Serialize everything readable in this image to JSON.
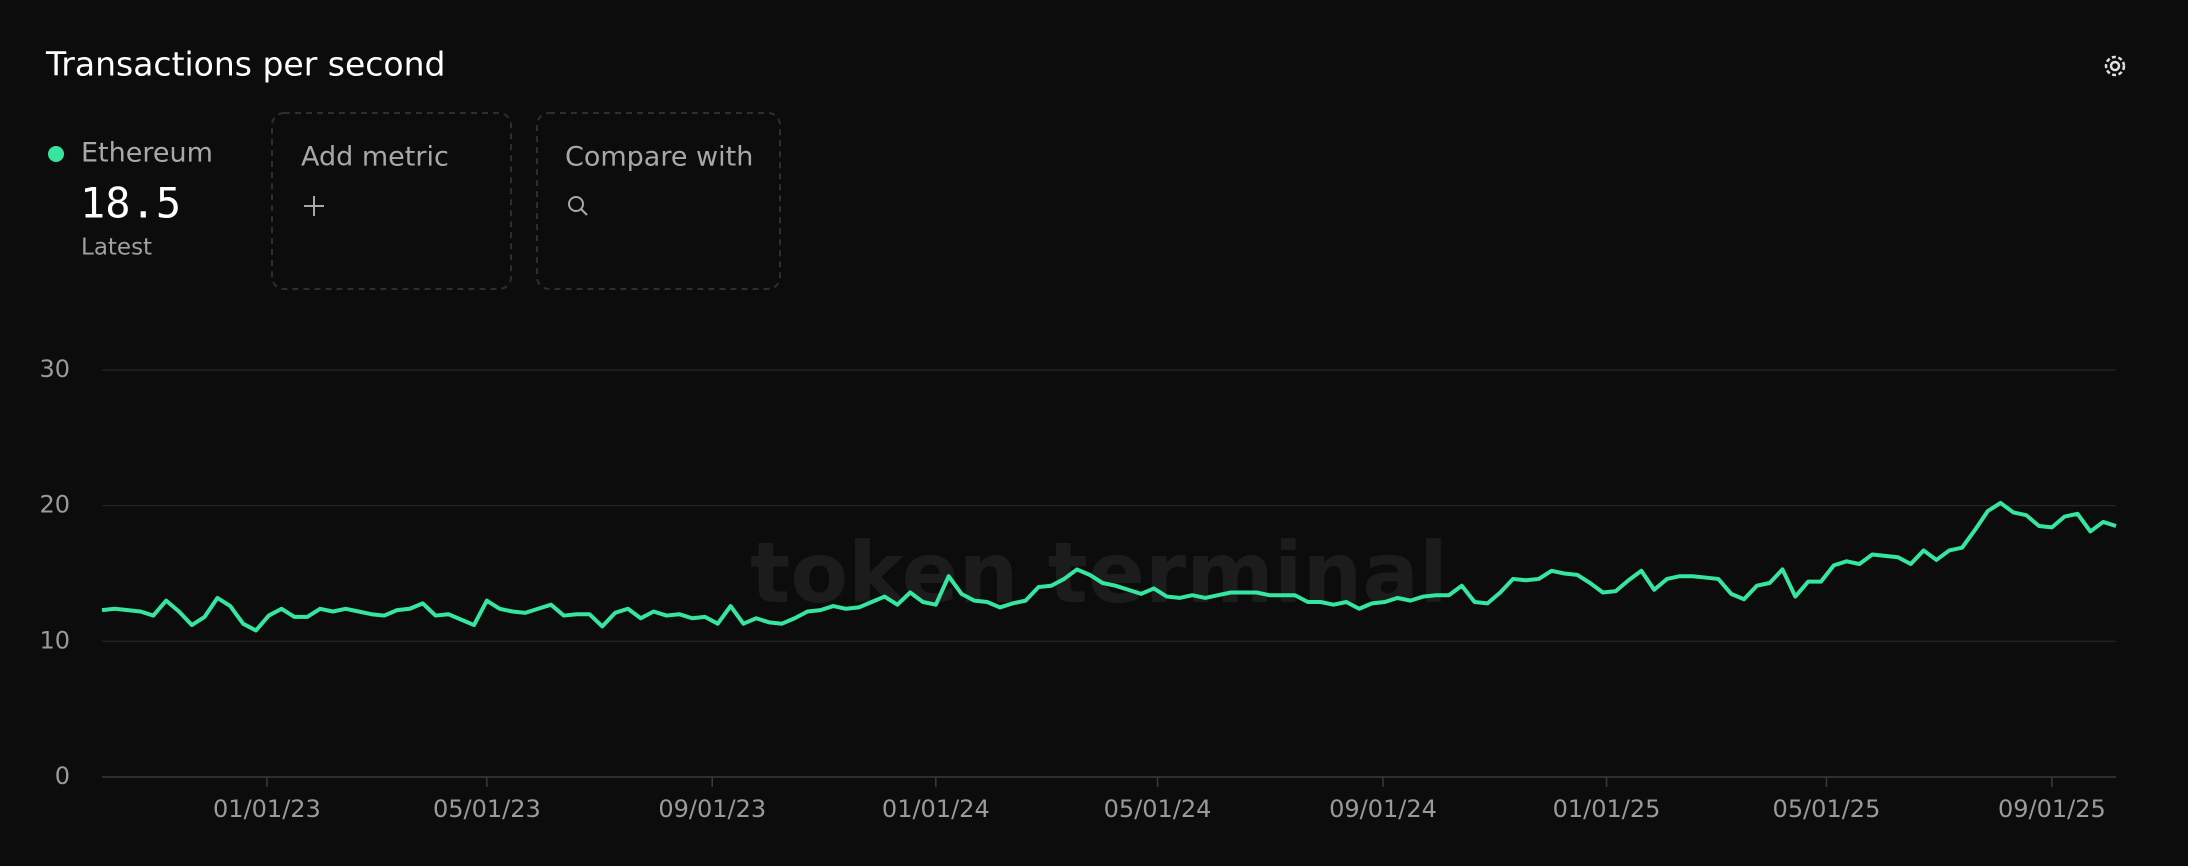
{
  "chart_data": {
    "type": "line",
    "title": "Transactions per second",
    "watermark": "token terminal",
    "latest_value": "18.5",
    "latest_label": "Latest",
    "add_metric": "Add metric",
    "compare_with": "Compare with",
    "x": [
      "2022-10-03",
      "2022-10-10",
      "2022-10-17",
      "2022-10-24",
      "2022-10-31",
      "2022-11-07",
      "2022-11-14",
      "2022-11-21",
      "2022-11-28",
      "2022-12-05",
      "2022-12-12",
      "2022-12-19",
      "2022-12-26",
      "2023-01-02",
      "2023-01-09",
      "2023-01-16",
      "2023-01-23",
      "2023-01-30",
      "2023-02-06",
      "2023-02-13",
      "2023-02-20",
      "2023-02-27",
      "2023-03-06",
      "2023-03-13",
      "2023-03-20",
      "2023-03-27",
      "2023-04-03",
      "2023-04-10",
      "2023-04-17",
      "2023-04-24",
      "2023-05-01",
      "2023-05-08",
      "2023-05-15",
      "2023-05-22",
      "2023-05-29",
      "2023-06-05",
      "2023-06-12",
      "2023-06-19",
      "2023-06-26",
      "2023-07-03",
      "2023-07-10",
      "2023-07-17",
      "2023-07-24",
      "2023-07-31",
      "2023-08-07",
      "2023-08-14",
      "2023-08-21",
      "2023-08-28",
      "2023-09-04",
      "2023-09-11",
      "2023-09-18",
      "2023-09-25",
      "2023-10-02",
      "2023-10-09",
      "2023-10-16",
      "2023-10-23",
      "2023-10-30",
      "2023-11-06",
      "2023-11-13",
      "2023-11-20",
      "2023-11-27",
      "2023-12-04",
      "2023-12-11",
      "2023-12-18",
      "2023-12-25",
      "2024-01-01",
      "2024-01-08",
      "2024-01-15",
      "2024-01-22",
      "2024-01-29",
      "2024-02-05",
      "2024-02-12",
      "2024-02-19",
      "2024-02-26",
      "2024-03-04",
      "2024-03-11",
      "2024-03-18",
      "2024-03-25",
      "2024-04-01",
      "2024-04-08",
      "2024-04-15",
      "2024-04-22",
      "2024-04-29",
      "2024-05-06",
      "2024-05-13",
      "2024-05-20",
      "2024-05-27",
      "2024-06-03",
      "2024-06-10",
      "2024-06-17",
      "2024-06-24",
      "2024-07-01",
      "2024-07-08",
      "2024-07-15",
      "2024-07-22",
      "2024-07-29",
      "2024-08-05",
      "2024-08-12",
      "2024-08-19",
      "2024-08-26",
      "2024-09-02",
      "2024-09-09",
      "2024-09-16",
      "2024-09-23",
      "2024-09-30",
      "2024-10-07",
      "2024-10-14",
      "2024-10-21",
      "2024-10-28",
      "2024-11-04",
      "2024-11-11",
      "2024-11-18",
      "2024-11-25",
      "2024-12-02",
      "2024-12-09",
      "2024-12-16",
      "2024-12-23",
      "2024-12-30",
      "2025-01-06",
      "2025-01-13",
      "2025-01-20",
      "2025-01-27",
      "2025-02-03",
      "2025-02-10",
      "2025-02-17",
      "2025-02-24",
      "2025-03-03",
      "2025-03-10",
      "2025-03-17",
      "2025-03-24",
      "2025-03-31",
      "2025-04-07",
      "2025-04-14",
      "2025-04-21",
      "2025-04-28",
      "2025-05-05",
      "2025-05-12",
      "2025-05-19",
      "2025-05-26",
      "2025-06-02",
      "2025-06-09",
      "2025-06-16",
      "2025-06-23",
      "2025-06-30",
      "2025-07-07",
      "2025-07-14",
      "2025-07-21",
      "2025-07-28",
      "2025-08-04",
      "2025-08-11",
      "2025-08-18",
      "2025-08-25",
      "2025-09-01",
      "2025-09-08",
      "2025-09-15",
      "2025-09-22",
      "2025-09-29",
      "2025-10-06"
    ],
    "series": [
      {
        "name": "Ethereum",
        "color": "#36e6a0",
        "values": [
          12.3,
          12.4,
          12.3,
          12.2,
          11.9,
          13.0,
          12.2,
          11.2,
          11.8,
          13.2,
          12.6,
          11.3,
          10.8,
          11.9,
          12.4,
          11.8,
          11.8,
          12.4,
          12.2,
          12.4,
          12.2,
          12.0,
          11.9,
          12.3,
          12.4,
          12.8,
          11.9,
          12.0,
          11.6,
          11.2,
          13.0,
          12.4,
          12.2,
          12.1,
          12.4,
          12.7,
          11.9,
          12.0,
          12.0,
          11.1,
          12.1,
          12.4,
          11.7,
          12.2,
          11.9,
          12.0,
          11.7,
          11.8,
          11.3,
          12.6,
          11.3,
          11.7,
          11.4,
          11.3,
          11.7,
          12.2,
          12.3,
          12.6,
          12.4,
          12.5,
          12.9,
          13.3,
          12.7,
          13.6,
          12.9,
          12.7,
          14.8,
          13.5,
          13.0,
          12.9,
          12.5,
          12.8,
          13.0,
          14.0,
          14.1,
          14.6,
          15.3,
          14.9,
          14.3,
          14.1,
          13.8,
          13.5,
          13.9,
          13.3,
          13.2,
          13.4,
          13.2,
          13.4,
          13.6,
          13.6,
          13.6,
          13.4,
          13.4,
          13.4,
          12.9,
          12.9,
          12.7,
          12.9,
          12.4,
          12.8,
          12.9,
          13.2,
          13.0,
          13.3,
          13.4,
          13.4,
          14.1,
          12.9,
          12.8,
          13.6,
          14.6,
          14.5,
          14.6,
          15.2,
          15.0,
          14.9,
          14.3,
          13.6,
          13.7,
          14.5,
          15.2,
          13.8,
          14.6,
          14.8,
          14.8,
          14.7,
          14.6,
          13.5,
          13.1,
          14.1,
          14.3,
          15.3,
          13.3,
          14.4,
          14.4,
          15.6,
          15.9,
          15.7,
          16.4,
          16.3,
          16.2,
          15.7,
          16.7,
          16.0,
          16.7,
          16.9,
          18.2,
          19.6,
          20.2,
          19.5,
          19.3,
          18.5,
          18.4,
          19.2,
          19.4,
          18.1,
          18.8,
          18.5
        ]
      }
    ],
    "xlim": [
      "2022-10-03",
      "2025-10-06"
    ],
    "xticks": [
      {
        "value": "2023-01-01",
        "label": "01/01/23"
      },
      {
        "value": "2023-05-01",
        "label": "05/01/23"
      },
      {
        "value": "2023-09-01",
        "label": "09/01/23"
      },
      {
        "value": "2024-01-01",
        "label": "01/01/24"
      },
      {
        "value": "2024-05-01",
        "label": "05/01/24"
      },
      {
        "value": "2024-09-01",
        "label": "09/01/24"
      },
      {
        "value": "2025-01-01",
        "label": "01/01/25"
      },
      {
        "value": "2025-05-01",
        "label": "05/01/25"
      },
      {
        "value": "2025-09-01",
        "label": "09/01/25"
      }
    ],
    "ylim": [
      0,
      30
    ],
    "yticks": [
      0,
      10,
      20,
      30
    ],
    "grid": true
  }
}
